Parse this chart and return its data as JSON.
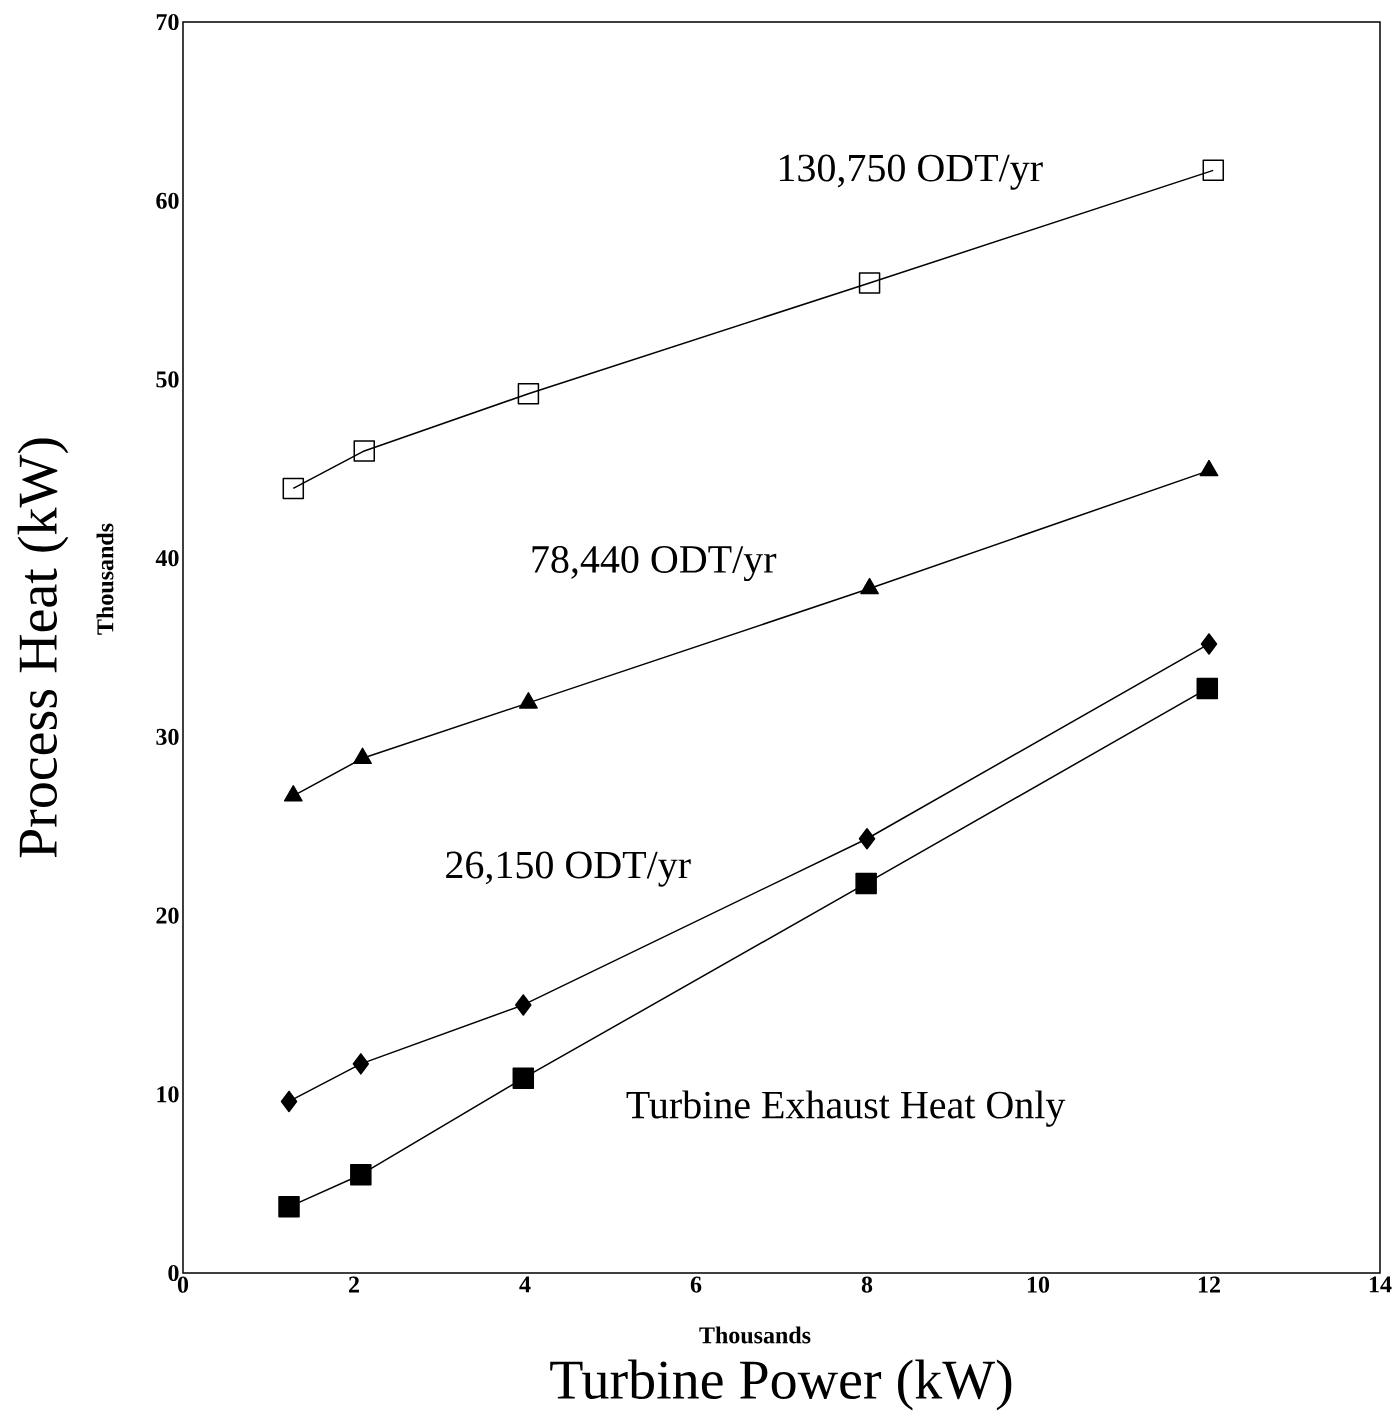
{
  "chart_data": {
    "type": "line",
    "xlabel": "Turbine Power (kW)",
    "ylabel": "Process Heat (kW)",
    "annotations": [
      "Thousands",
      "Thousands"
    ],
    "xlim": [
      0,
      14
    ],
    "xticks": [
      0,
      2,
      4,
      6,
      8,
      10,
      12,
      14
    ],
    "ylim": [
      0,
      70
    ],
    "yticks": [
      0,
      10,
      20,
      30,
      40,
      50,
      60,
      70
    ],
    "grid": false,
    "legend": false,
    "line_style": "solid",
    "series": [
      {
        "name": "130,750 ODT/yr",
        "color": "#000000",
        "marker": "square-open",
        "x": [
          1.29,
          2.12,
          4.04,
          8.03,
          12.05
        ],
        "values": [
          43.9,
          46.0,
          49.2,
          55.4,
          61.7
        ]
      },
      {
        "name": "78,440 ODT/yr",
        "color": "#000000",
        "marker": "triangle",
        "x": [
          1.29,
          2.1,
          4.04,
          8.03,
          12.0
        ],
        "values": [
          26.7,
          28.8,
          31.9,
          38.3,
          44.9
        ]
      },
      {
        "name": "26,150 ODT/yr",
        "color": "#000000",
        "marker": "diamond",
        "x": [
          1.24,
          2.08,
          3.98,
          8.0,
          12.0
        ],
        "values": [
          9.6,
          11.7,
          15.0,
          24.3,
          35.2
        ]
      },
      {
        "name": "Turbine Exhaust Heat Only",
        "color": "#000000",
        "marker": "square",
        "x": [
          1.24,
          2.08,
          3.98,
          7.99,
          11.98
        ],
        "values": [
          3.7,
          5.5,
          10.9,
          21.8,
          32.7
        ]
      }
    ]
  }
}
